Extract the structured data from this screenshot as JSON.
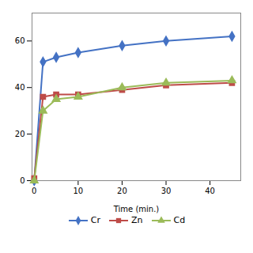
{
  "chart_data": {
    "type": "line",
    "xlabel": "Time (min.)",
    "x": [
      0,
      2,
      5,
      10,
      20,
      30,
      45
    ],
    "series": [
      {
        "name": "Cr",
        "color": "#4472C4",
        "marker": "diamond",
        "values": [
          0,
          51,
          53,
          55,
          58,
          60,
          62
        ]
      },
      {
        "name": "Zn",
        "color": "#BE4B48",
        "marker": "square",
        "values": [
          1,
          36,
          37,
          37,
          39,
          41,
          42
        ]
      },
      {
        "name": "Cd",
        "color": "#9BBB59",
        "marker": "triangle",
        "values": [
          0,
          30,
          35,
          36,
          40,
          42,
          43
        ]
      }
    ],
    "xlim": [
      -0.5,
      47
    ],
    "ylim": [
      0,
      72
    ],
    "xticks": [
      0,
      10,
      20,
      30,
      40
    ],
    "yticks": [
      0,
      20,
      40,
      60
    ],
    "legend": "bottom"
  }
}
